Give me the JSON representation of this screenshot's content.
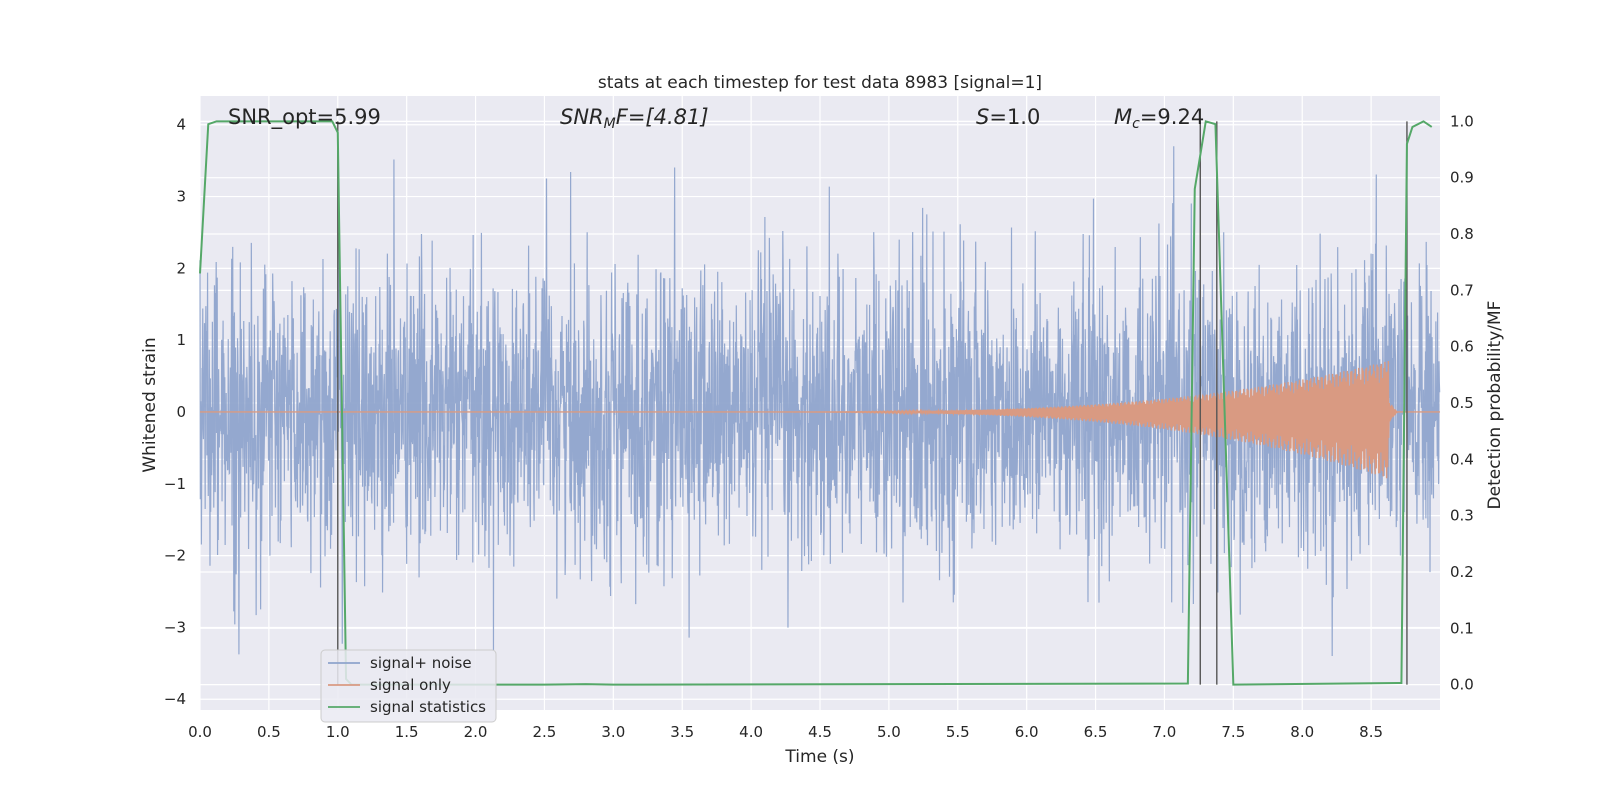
{
  "chart_data": {
    "type": "line",
    "title": "stats at each timestep for test data 8983 [signal=1]",
    "xlabel": "Time (s)",
    "ylabel": "Whitened strain",
    "ylabel_right": "Detection probability/MF",
    "xlim": [
      0.0,
      9.0
    ],
    "ylim": [
      -4.15,
      4.4
    ],
    "ylim_right": [
      -0.045,
      1.045
    ],
    "x_ticks": [
      "0.0",
      "0.5",
      "1.0",
      "1.5",
      "2.0",
      "2.5",
      "3.0",
      "3.5",
      "4.0",
      "4.5",
      "5.0",
      "5.5",
      "6.0",
      "6.5",
      "7.0",
      "7.5",
      "8.0",
      "8.5"
    ],
    "y_ticks": [
      "4",
      "3",
      "2",
      "1",
      "0",
      "−1",
      "−2",
      "−3",
      "−4"
    ],
    "y_ticks_right": [
      "1.0",
      "0.9",
      "0.8",
      "0.7",
      "0.6",
      "0.5",
      "0.4",
      "0.3",
      "0.2",
      "0.1",
      "0.0"
    ],
    "grid": true,
    "legend_position": "lower-left",
    "annotations": {
      "snr_opt": "SNR_opt=5.99",
      "snr_mf_prefix": "SNR",
      "snr_mf_sub": "M",
      "snr_mf_suffix": "F=[4.81]",
      "s_label": "S",
      "s_value": "=1.0",
      "mc_label": "M",
      "mc_sub": "c",
      "mc_value": "=9.24"
    },
    "series": [
      {
        "name": "signal+ noise",
        "color": "#8fa4cc",
        "description_values": "whitened noisy strain, approx. uniform noise std 1, occasional spikes to +/-3.7",
        "sample_rate_hz": 400,
        "noise_std": 1.0
      },
      {
        "name": "signal only",
        "color": "#d99a82",
        "chirp": {
          "t_start": 4.0,
          "t_merger": 8.63,
          "peak_amp": 0.65,
          "peak_amp_neg": -0.85
        }
      },
      {
        "name": "signal statistics",
        "color": "#55a868",
        "x": [
          0.0,
          0.06,
          0.12,
          0.2,
          0.5,
          0.8,
          0.96,
          1.0,
          1.06,
          1.1,
          2.5,
          2.8,
          3.0,
          7.17,
          7.22,
          7.3,
          7.37,
          7.5,
          8.72,
          8.76,
          8.8,
          8.88,
          8.94
        ],
        "y": [
          0.73,
          0.995,
          1.0,
          1.0,
          1.0,
          1.0,
          1.0,
          0.98,
          0.01,
          0.0,
          0.0,
          0.001,
          0.0,
          0.002,
          0.88,
          1.0,
          0.995,
          0.0,
          0.003,
          0.96,
          0.99,
          1.0,
          0.99
        ]
      }
    ],
    "vertical_lines": [
      {
        "x": 1.0,
        "ymin_right": 0.0,
        "ymax_right": 1.0
      },
      {
        "x": 7.26,
        "ymin_right": 0.0,
        "ymax_right": 1.0
      },
      {
        "x": 7.38,
        "ymin_right": 0.0,
        "ymax_right": 1.0
      },
      {
        "x": 8.76,
        "ymin_right": 0.0,
        "ymax_right": 1.0
      }
    ]
  }
}
